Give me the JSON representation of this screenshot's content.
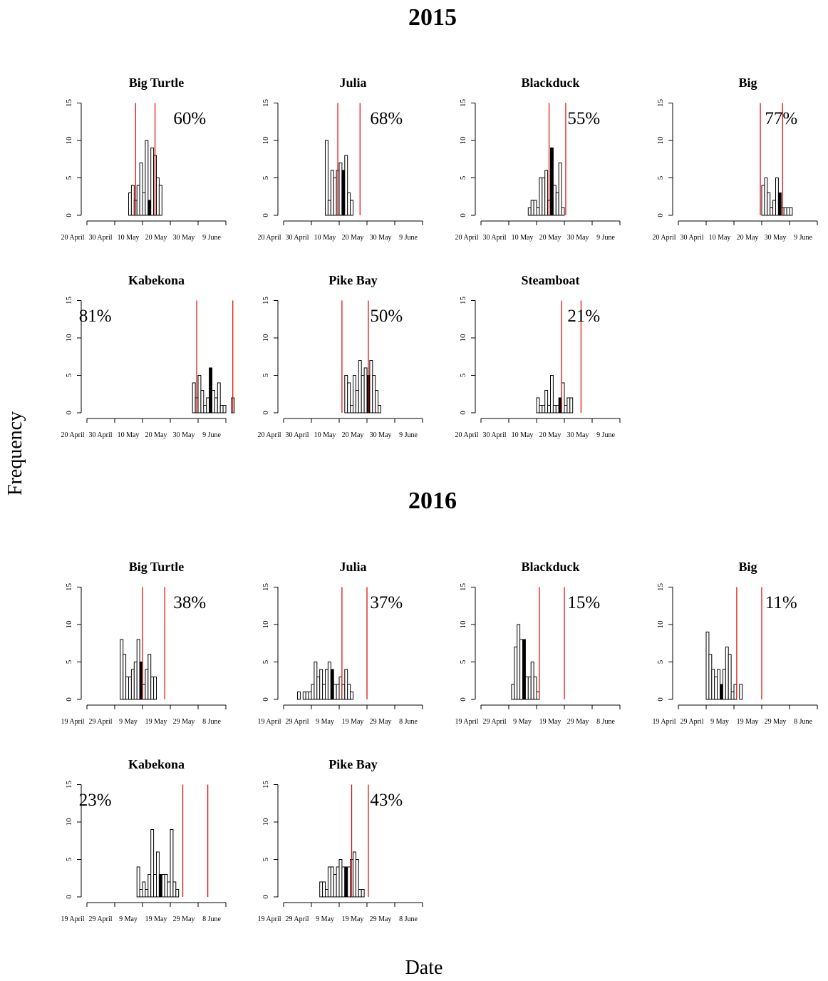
{
  "page": {
    "title_2015": "2015",
    "title_2016": "2016",
    "ylabel": "Frequency",
    "xlabel": "Date"
  },
  "chart_data": [
    {
      "type": "bar",
      "year": "2015",
      "title": "Big Turtle",
      "annotation": "60%",
      "x_ticks": [
        "20 April",
        "30 April",
        "10 May",
        "20 May",
        "30 May",
        "9 June"
      ],
      "ylim": [
        0,
        15
      ],
      "yticks": [
        0,
        5,
        10,
        15
      ],
      "bin_start_day": 15,
      "bin_width_days": 1,
      "values": [
        3,
        4,
        2,
        4,
        7,
        3,
        10,
        2,
        9,
        8,
        5,
        4
      ],
      "highlight_index": 7,
      "vlines_day": [
        17.5,
        24.5
      ]
    },
    {
      "type": "bar",
      "year": "2015",
      "title": "Julia",
      "annotation": "68%",
      "x_ticks": [
        "20 April",
        "30 April",
        "10 May",
        "20 May",
        "30 May",
        "9 June"
      ],
      "ylim": [
        0,
        15
      ],
      "yticks": [
        0,
        5,
        10,
        15
      ],
      "bin_start_day": 15,
      "bin_width_days": 1,
      "values": [
        10,
        2,
        6,
        5,
        6,
        7,
        6,
        8,
        3,
        2
      ],
      "highlight_index": 6,
      "vlines_day": [
        19.5,
        27.5
      ]
    },
    {
      "type": "bar",
      "year": "2015",
      "title": "Blackduck",
      "annotation": "55%",
      "x_ticks": [
        "20 April",
        "30 April",
        "10 May",
        "20 May",
        "30 May",
        "9 June"
      ],
      "ylim": [
        0,
        15
      ],
      "yticks": [
        0,
        5,
        10,
        15
      ],
      "bin_start_day": 17,
      "bin_width_days": 1,
      "values": [
        1,
        2,
        2,
        1,
        5,
        5,
        6,
        2,
        9,
        4,
        3,
        7,
        1
      ],
      "highlight_index": 8,
      "vlines_day": [
        24.5,
        30.5
      ]
    },
    {
      "type": "bar",
      "year": "2015",
      "title": "Big",
      "annotation": "77%",
      "x_ticks": [
        "20 April",
        "30 April",
        "10 May",
        "20 May",
        "30 May",
        "9 June"
      ],
      "ylim": [
        0,
        15
      ],
      "yticks": [
        0,
        5,
        10,
        15
      ],
      "bin_start_day": 30,
      "bin_width_days": 1,
      "values": [
        4,
        5,
        3,
        1,
        2,
        5,
        3,
        1,
        1,
        1,
        1
      ],
      "highlight_index": 6,
      "vlines_day": [
        29.5,
        37.5
      ]
    },
    {
      "type": "bar",
      "year": "2015",
      "title": "Kabekona",
      "annotation": "81%",
      "x_ticks": [
        "20 April",
        "30 April",
        "10 May",
        "20 May",
        "30 May",
        "9 June"
      ],
      "ylim": [
        0,
        15
      ],
      "yticks": [
        0,
        5,
        10,
        15
      ],
      "bin_start_day": 38,
      "bin_width_days": 1,
      "values": [
        4,
        2,
        5,
        3,
        1,
        2,
        6,
        3,
        2,
        4,
        1,
        1,
        0,
        0,
        2
      ],
      "highlight_index": 6,
      "vlines_day": [
        39.5,
        52.5
      ]
    },
    {
      "type": "bar",
      "year": "2015",
      "title": "Pike Bay",
      "annotation": "50%",
      "x_ticks": [
        "20 April",
        "30 April",
        "10 May",
        "20 May",
        "30 May",
        "9 June"
      ],
      "ylim": [
        0,
        15
      ],
      "yticks": [
        0,
        5,
        10,
        15
      ],
      "bin_start_day": 22,
      "bin_width_days": 1,
      "values": [
        5,
        4,
        1,
        5,
        3,
        7,
        5,
        6,
        5,
        7,
        5,
        3,
        1
      ],
      "highlight_index": 8,
      "vlines_day": [
        21.0,
        30.5
      ]
    },
    {
      "type": "bar",
      "year": "2015",
      "title": "Steamboat",
      "annotation": "21%",
      "x_ticks": [
        "20 April",
        "30 April",
        "10 May",
        "20 May",
        "30 May",
        "9 June"
      ],
      "ylim": [
        0,
        15
      ],
      "yticks": [
        0,
        5,
        10,
        15
      ],
      "bin_start_day": 20,
      "bin_width_days": 1,
      "values": [
        2,
        1,
        1,
        3,
        1,
        5,
        1,
        1,
        2,
        4,
        1,
        2,
        2
      ],
      "highlight_index": 8,
      "vlines_day": [
        29.0,
        36.0
      ]
    },
    {
      "type": "bar",
      "year": "2016",
      "title": "Big Turtle",
      "annotation": "38%",
      "x_ticks": [
        "19 April",
        "29 April",
        "9 May",
        "19 May",
        "29 May",
        "8 June"
      ],
      "ylim": [
        0,
        15
      ],
      "yticks": [
        0,
        5,
        10,
        15
      ],
      "bin_start_day": 12,
      "bin_width_days": 1,
      "values": [
        8,
        6,
        3,
        3,
        4,
        5,
        8,
        5,
        2,
        4,
        6,
        3,
        3
      ],
      "highlight_index": 7,
      "vlines_day": [
        20.0,
        28.0
      ]
    },
    {
      "type": "bar",
      "year": "2016",
      "title": "Julia",
      "annotation": "37%",
      "x_ticks": [
        "19 April",
        "29 April",
        "9 May",
        "19 May",
        "29 May",
        "8 June"
      ],
      "ylim": [
        0,
        15
      ],
      "yticks": [
        0,
        5,
        10,
        15
      ],
      "bin_start_day": 5,
      "bin_width_days": 1,
      "values": [
        1,
        0,
        1,
        1,
        1,
        2,
        5,
        3,
        4,
        2,
        4,
        5,
        4,
        2,
        2,
        3,
        2,
        4,
        2,
        1
      ],
      "highlight_index": 12,
      "vlines_day": [
        21.0,
        30.0
      ]
    },
    {
      "type": "bar",
      "year": "2016",
      "title": "Blackduck",
      "annotation": "15%",
      "x_ticks": [
        "19 April",
        "29 April",
        "9 May",
        "19 May",
        "29 May",
        "8 June"
      ],
      "ylim": [
        0,
        15
      ],
      "yticks": [
        0,
        5,
        10,
        15
      ],
      "bin_start_day": 11,
      "bin_width_days": 1,
      "values": [
        2,
        7,
        10,
        8,
        8,
        3,
        3,
        5,
        3,
        1
      ],
      "highlight_index": 4,
      "vlines_day": [
        21.0,
        30.0
      ]
    },
    {
      "type": "bar",
      "year": "2016",
      "title": "Big",
      "annotation": "11%",
      "x_ticks": [
        "19 April",
        "29 April",
        "9 May",
        "19 May",
        "29 May",
        "8 June"
      ],
      "ylim": [
        0,
        15
      ],
      "yticks": [
        0,
        5,
        10,
        15
      ],
      "bin_start_day": 10,
      "bin_width_days": 1,
      "values": [
        9,
        6,
        4,
        3,
        4,
        2,
        4,
        7,
        6,
        1,
        2,
        0,
        2
      ],
      "highlight_index": 5,
      "vlines_day": [
        21.0,
        30.0
      ]
    },
    {
      "type": "bar",
      "year": "2016",
      "title": "Kabekona",
      "annotation": "23%",
      "x_ticks": [
        "19 April",
        "29 April",
        "9 May",
        "19 May",
        "29 May",
        "8 June"
      ],
      "ylim": [
        0,
        15
      ],
      "yticks": [
        0,
        5,
        10,
        15
      ],
      "bin_start_day": 18,
      "bin_width_days": 1,
      "values": [
        4,
        1,
        2,
        1,
        3,
        9,
        3,
        6,
        3,
        3,
        3,
        2,
        9,
        2,
        1
      ],
      "highlight_index": 8,
      "vlines_day": [
        34.5,
        43.5
      ]
    },
    {
      "type": "bar",
      "year": "2016",
      "title": "Pike Bay",
      "annotation": "43%",
      "x_ticks": [
        "19 April",
        "29 April",
        "9 May",
        "19 May",
        "29 May",
        "8 June"
      ],
      "ylim": [
        0,
        15
      ],
      "yticks": [
        0,
        5,
        10,
        15
      ],
      "bin_start_day": 13,
      "bin_width_days": 1,
      "values": [
        2,
        2,
        1,
        4,
        4,
        3,
        4,
        5,
        4,
        4,
        4,
        5,
        6,
        5,
        1,
        1
      ],
      "highlight_index": 9,
      "vlines_day": [
        24.5,
        30.5
      ]
    }
  ]
}
